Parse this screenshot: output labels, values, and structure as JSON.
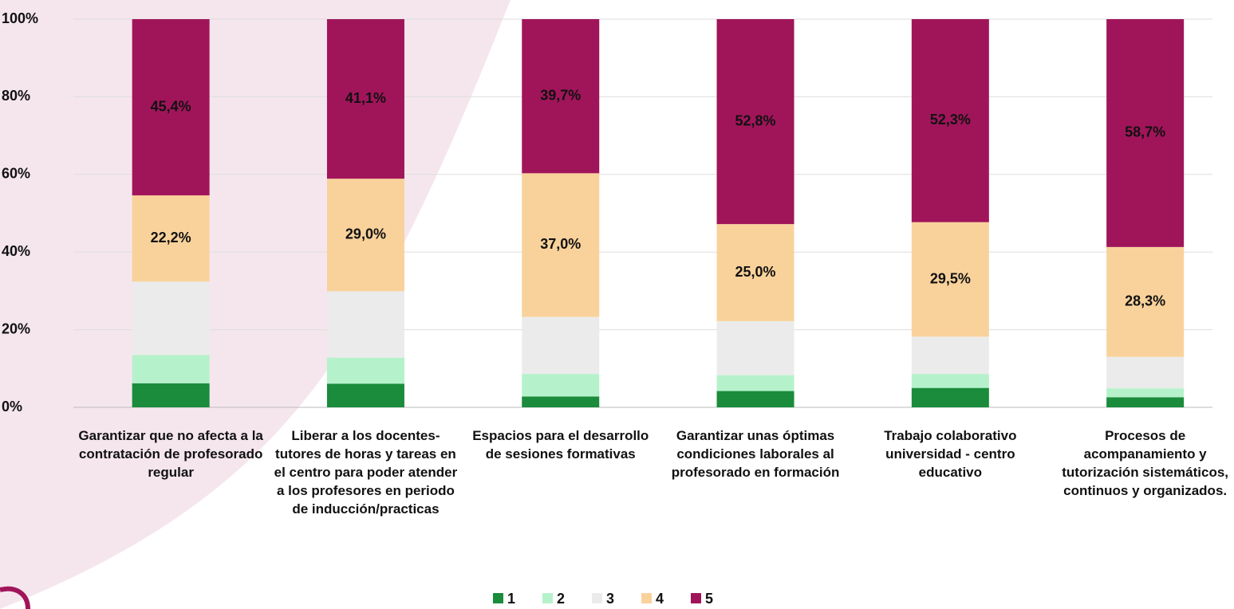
{
  "chart_data": {
    "type": "stacked_bar",
    "categories": [
      "Garantizar que no afecta a la contratación de profesorado regular",
      "Liberar a los docentes-tutores de horas y tareas en el centro para poder atender a los profesores en periodo de inducción/practicas",
      "Espacios para el desarrollo de sesiones formativas",
      "Garantizar unas óptimas condiciones laborales al profesorado en formación",
      "Trabajo colaborativo universidad - centro educativo",
      "Procesos de acompanamiento y tutorización sistemáticos, continuos y organizados."
    ],
    "series": [
      {
        "name": "1",
        "color": "#1a8c3c",
        "values": [
          6.2,
          6.1,
          2.8,
          4.2,
          5.0,
          2.6
        ]
      },
      {
        "name": "2",
        "color": "#b5f2cb",
        "values": [
          7.3,
          6.7,
          5.8,
          4.1,
          3.6,
          2.3
        ]
      },
      {
        "name": "3",
        "color": "#ebebeb",
        "values": [
          18.9,
          17.1,
          14.7,
          13.9,
          9.6,
          8.1
        ]
      },
      {
        "name": "4",
        "color": "#f9d29b",
        "values": [
          22.2,
          29.0,
          37.0,
          25.0,
          29.5,
          28.3
        ],
        "value_labels": [
          "22,2%",
          "29,0%",
          "37,0%",
          "25,0%",
          "29,5%",
          "28,3%"
        ]
      },
      {
        "name": "5",
        "color": "#a0155a",
        "values": [
          45.4,
          41.1,
          39.7,
          52.8,
          52.3,
          58.7
        ],
        "value_labels": [
          "45,4%",
          "41,1%",
          "39,7%",
          "52,8%",
          "52,3%",
          "58,7%"
        ]
      }
    ],
    "ylim": [
      0,
      100
    ],
    "yticks": [
      {
        "value": 0,
        "label": "0%"
      },
      {
        "value": 20,
        "label": "20%"
      },
      {
        "value": 40,
        "label": "40%"
      },
      {
        "value": 60,
        "label": "60%"
      },
      {
        "value": 80,
        "label": "80%"
      },
      {
        "value": 100,
        "label": "100%"
      }
    ],
    "grid": true,
    "legend": "bottom"
  }
}
